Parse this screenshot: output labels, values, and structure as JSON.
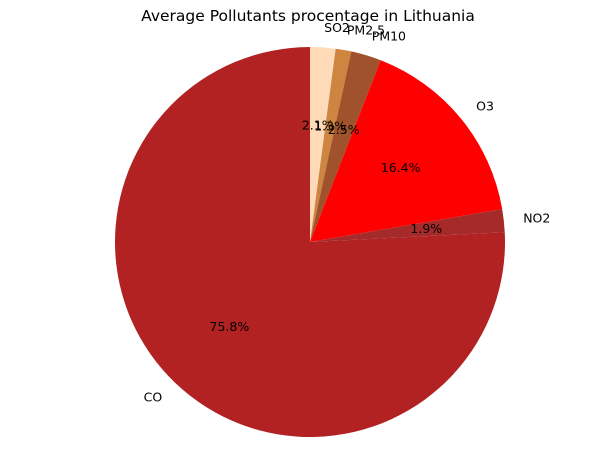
{
  "chart_data": {
    "type": "pie",
    "title": "Average Pollutants procentage in Lithuania",
    "slices": [
      {
        "label": "SO2",
        "value": 2.1,
        "pct_label": "2.1%",
        "color": "#ffdab9"
      },
      {
        "label": "PM2.5",
        "value": 1.3,
        "pct_label": "1.3%",
        "color": "#cd853f"
      },
      {
        "label": "PM10",
        "value": 2.5,
        "pct_label": "2.5%",
        "color": "#a0522d"
      },
      {
        "label": "O3",
        "value": 16.4,
        "pct_label": "16.4%",
        "color": "#ff0000"
      },
      {
        "label": "NO2",
        "value": 1.9,
        "pct_label": "1.9%",
        "color": "#a52a2a"
      },
      {
        "label": "CO",
        "value": 75.8,
        "pct_label": "75.8%",
        "color": "#b22222"
      }
    ],
    "start_angle_deg": 90,
    "direction": "clockwise"
  }
}
